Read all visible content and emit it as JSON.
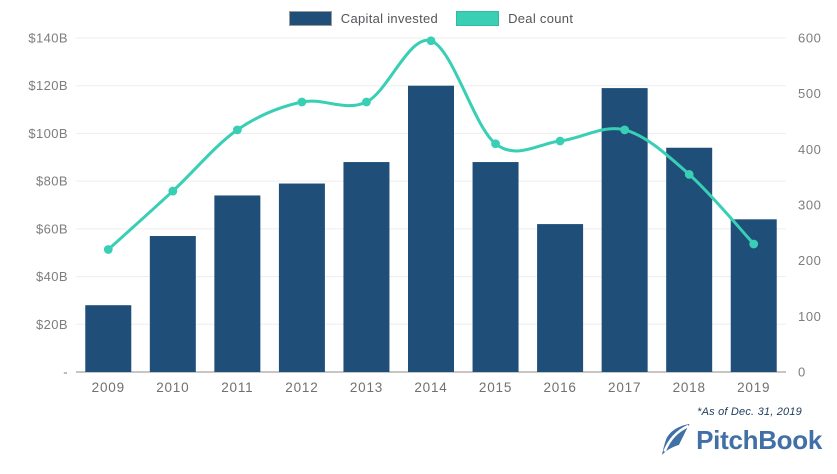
{
  "legend": {
    "items": [
      {
        "label": "Capital invested",
        "color": "#1f4e79"
      },
      {
        "label": "Deal count",
        "color": "#38cfb4"
      }
    ]
  },
  "chart_data": {
    "type": "combo-bar-line",
    "title": "",
    "categories": [
      "2009",
      "2010",
      "2011",
      "2012",
      "2013",
      "2014",
      "2015",
      "2016",
      "2017",
      "2018",
      "2019"
    ],
    "series": [
      {
        "name": "Capital invested",
        "type": "bar",
        "axis": "left",
        "unit": "$B",
        "color": "#1f4e79",
        "values": [
          28,
          57,
          74,
          79,
          88,
          120,
          88,
          62,
          119,
          94,
          64
        ]
      },
      {
        "name": "Deal count",
        "type": "line",
        "axis": "right",
        "color": "#38cfb4",
        "values": [
          220,
          325,
          435,
          485,
          485,
          595,
          410,
          415,
          435,
          355,
          230
        ]
      }
    ],
    "left_axis": {
      "min": 0,
      "max": 140,
      "tick_values": [
        140,
        120,
        100,
        80,
        60,
        40,
        20,
        0
      ],
      "tick_labels": [
        "$140B",
        "$120B",
        "$100B",
        "$80B",
        "$60B",
        "$40B",
        "$20B",
        "-"
      ]
    },
    "right_axis": {
      "min": 0,
      "max": 600,
      "tick_values": [
        600,
        500,
        400,
        300,
        200,
        100,
        0
      ],
      "tick_labels": [
        "600",
        "500",
        "400",
        "300",
        "200",
        "100",
        "0"
      ]
    },
    "grid": "horizontal",
    "legend_position": "top-center",
    "colors": {
      "grid_line": "#ededed",
      "zero_axis_line": "#a3a3a3",
      "axis_text": "#7d7d7d",
      "x_axis_text": "#707070"
    }
  },
  "footnote": "*As of Dec. 31, 2019",
  "logo": {
    "text": "PitchBook",
    "color": "#4170a6"
  }
}
